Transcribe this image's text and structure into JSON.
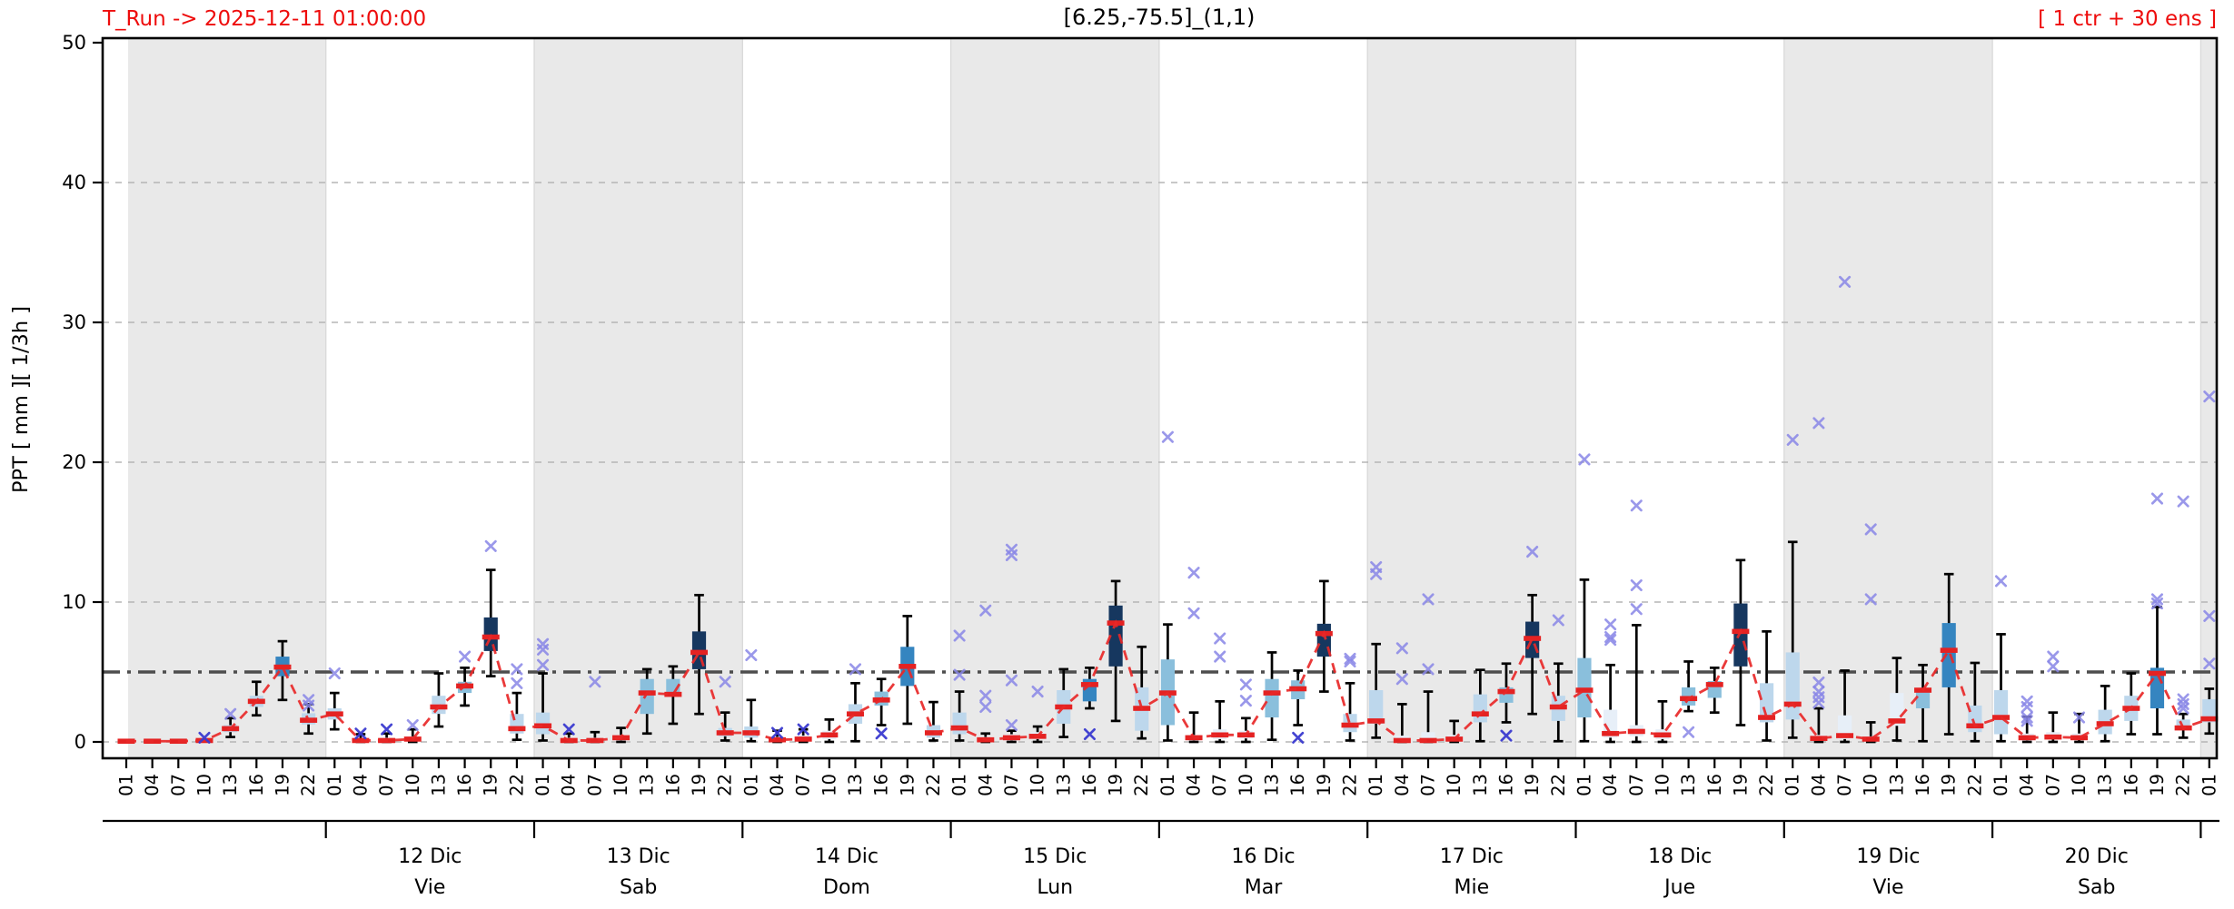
{
  "header": {
    "run_label": "T_Run -> 2025-12-11  01:00:00",
    "location_label": "[6.25,-75.5]_(1,1)",
    "ensemble_label": "[ 1 ctr + 30 ens ]"
  },
  "axes": {
    "y_label": "PPT [ mm ][ 1/3h ]",
    "y_ticks": [
      0,
      10,
      20,
      30,
      40,
      50
    ],
    "y_lim": [
      0,
      50
    ],
    "threshold_value": 5
  },
  "palette": {
    "title_red": "#ee0d0d",
    "median": "#e42222",
    "trend": "#e82828",
    "whisker": "#000000",
    "outlier": "#8886e6",
    "outlier_dark": "#3a3ad0",
    "band": "#e9e9e9",
    "band_edge": "#d9d9d9",
    "grid": "#b5b5b5",
    "threshold": "#4d4d4d",
    "box": {
      "verypale": "#e7eff8",
      "pale": "#bdd7ec",
      "midlight": "#8abfdc",
      "steel": "#3585c0",
      "navy": "#16375f"
    }
  },
  "chart_data": {
    "type": "boxplot",
    "title": "[6.25,-75.5]_(1,1)",
    "title_left": "T_Run -> 2025-12-11  01:00:00",
    "title_right": "[ 1 ctr + 30 ens ]",
    "xlabel": "",
    "ylabel": "PPT [ mm ][ 1/3h ]",
    "ylim": [
      0,
      50
    ],
    "grid": "horizontal dashed at 0,10,20,30,40",
    "legend": "none",
    "threshold_line": 5,
    "hours_per_day": [
      "01",
      "04",
      "07",
      "10",
      "13",
      "16",
      "19",
      "22"
    ],
    "days": [
      {
        "date": "",
        "weekday": "",
        "shaded": true
      },
      {
        "date": "12 Dic",
        "weekday": "Vie",
        "shaded": false
      },
      {
        "date": "13 Dic",
        "weekday": "Sab",
        "shaded": true
      },
      {
        "date": "14 Dic",
        "weekday": "Dom",
        "shaded": false
      },
      {
        "date": "15 Dic",
        "weekday": "Lun",
        "shaded": true
      },
      {
        "date": "16 Dic",
        "weekday": "Mar",
        "shaded": false
      },
      {
        "date": "17 Dic",
        "weekday": "Mie",
        "shaded": true
      },
      {
        "date": "18 Dic",
        "weekday": "Jue",
        "shaded": false
      },
      {
        "date": "19 Dic",
        "weekday": "Vie",
        "shaded": true
      },
      {
        "date": "20 Dic",
        "weekday": "Sab",
        "shaded": false
      },
      {
        "date": "",
        "weekday": "",
        "shaded": true
      }
    ],
    "slots": [
      {
        "h": "01",
        "m": 0.05
      },
      {
        "h": "04",
        "m": 0.05
      },
      {
        "h": "07",
        "m": 0.05
      },
      {
        "h": "10",
        "m": 0.1,
        "od": [
          0.3
        ]
      },
      {
        "h": "13",
        "m": 0.95,
        "b": [
          0.7,
          1.2
        ],
        "w": [
          0.35,
          1.7
        ],
        "c": "pale",
        "o": [
          2.0
        ]
      },
      {
        "h": "16",
        "m": 2.9,
        "b": [
          2.5,
          3.3
        ],
        "w": [
          1.9,
          4.3
        ],
        "c": "pale"
      },
      {
        "h": "19",
        "m": 5.35,
        "b": [
          4.7,
          6.1
        ],
        "w": [
          3.0,
          7.2
        ],
        "c": "steel"
      },
      {
        "h": "22",
        "m": 1.55,
        "b": [
          1.25,
          2.05
        ],
        "w": [
          0.6,
          2.7
        ],
        "c": "pale",
        "o": [
          2.6,
          3.0
        ]
      },
      {
        "h": "01",
        "m": 2.0,
        "b": [
          1.6,
          2.4
        ],
        "w": [
          0.9,
          3.5
        ],
        "c": "pale",
        "o": [
          4.9
        ]
      },
      {
        "h": "04",
        "m": 0.1,
        "b": [
          0,
          0.25
        ],
        "w": [
          0,
          0.55
        ],
        "c": "verypale",
        "od": [
          0.6
        ]
      },
      {
        "h": "07",
        "m": 0.1,
        "b": [
          0,
          0.3
        ],
        "w": [
          0,
          0.6
        ],
        "c": "verypale",
        "od": [
          0.9
        ]
      },
      {
        "h": "10",
        "m": 0.2,
        "b": [
          0.05,
          0.4
        ],
        "w": [
          0,
          0.9
        ],
        "c": "verypale",
        "o": [
          1.2
        ]
      },
      {
        "h": "13",
        "m": 2.5,
        "b": [
          2.0,
          3.3
        ],
        "w": [
          1.1,
          4.9
        ],
        "c": "pale"
      },
      {
        "h": "16",
        "m": 4.0,
        "b": [
          3.5,
          4.3
        ],
        "w": [
          2.6,
          5.3
        ],
        "c": "midlight",
        "o": [
          6.1
        ]
      },
      {
        "h": "19",
        "m": 7.5,
        "b": [
          6.5,
          8.9
        ],
        "w": [
          4.7,
          12.3
        ],
        "c": "navy",
        "o": [
          14.0
        ]
      },
      {
        "h": "22",
        "m": 0.95,
        "b": [
          0.6,
          2.0
        ],
        "w": [
          0.15,
          3.5
        ],
        "c": "pale",
        "o": [
          4.2,
          5.2
        ]
      },
      {
        "h": "01",
        "m": 1.15,
        "b": [
          0.55,
          2.1
        ],
        "w": [
          0.1,
          4.9
        ],
        "c": "pale",
        "o": [
          5.5,
          6.6,
          7.0
        ]
      },
      {
        "h": "04",
        "m": 0.1,
        "b": [
          0,
          0.3
        ],
        "w": [
          0,
          0.6
        ],
        "c": "verypale",
        "od": [
          0.9
        ]
      },
      {
        "h": "07",
        "m": 0.1,
        "b": [
          0,
          0.3
        ],
        "w": [
          0,
          0.7
        ],
        "c": "verypale",
        "o": [
          4.3
        ]
      },
      {
        "h": "10",
        "m": 0.3,
        "b": [
          0.1,
          0.5
        ],
        "w": [
          0,
          1.0
        ],
        "c": "verypale"
      },
      {
        "h": "13",
        "m": 3.5,
        "b": [
          2.0,
          4.5
        ],
        "w": [
          0.6,
          5.2
        ],
        "c": "midlight"
      },
      {
        "h": "16",
        "m": 3.4,
        "b": [
          3.3,
          4.5
        ],
        "w": [
          1.3,
          5.4
        ],
        "c": "midlight"
      },
      {
        "h": "19",
        "m": 6.4,
        "b": [
          5.2,
          7.9
        ],
        "w": [
          2.0,
          10.5
        ],
        "c": "navy"
      },
      {
        "h": "22",
        "m": 0.65,
        "b": [
          0.4,
          1.0
        ],
        "w": [
          0.1,
          2.1
        ],
        "c": "pale",
        "o": [
          4.3
        ]
      },
      {
        "h": "01",
        "m": 0.65,
        "b": [
          0.3,
          1.1
        ],
        "w": [
          0.05,
          3.0
        ],
        "c": "pale",
        "o": [
          6.2
        ]
      },
      {
        "h": "04",
        "m": 0.15,
        "b": [
          0,
          0.35
        ],
        "w": [
          0,
          0.8
        ],
        "c": "verypale",
        "od": [
          0.65
        ]
      },
      {
        "h": "07",
        "m": 0.2,
        "b": [
          0.05,
          0.45
        ],
        "w": [
          0,
          0.9
        ],
        "c": "verypale",
        "od": [
          0.9
        ]
      },
      {
        "h": "10",
        "m": 0.5,
        "b": [
          0.2,
          0.8
        ],
        "w": [
          0,
          1.6
        ],
        "c": "verypale"
      },
      {
        "h": "13",
        "m": 2.0,
        "b": [
          1.3,
          2.7
        ],
        "w": [
          0.05,
          4.2
        ],
        "c": "pale",
        "o": [
          5.2
        ]
      },
      {
        "h": "16",
        "m": 3.0,
        "b": [
          2.6,
          3.6
        ],
        "w": [
          1.2,
          4.5
        ],
        "c": "midlight",
        "od": [
          0.6
        ]
      },
      {
        "h": "19",
        "m": 5.4,
        "b": [
          4.0,
          6.8
        ],
        "w": [
          1.3,
          9.0
        ],
        "c": "steel"
      },
      {
        "h": "22",
        "m": 0.65,
        "b": [
          0.3,
          1.2
        ],
        "w": [
          0.1,
          2.85
        ],
        "c": "pale"
      },
      {
        "h": "01",
        "m": 1.0,
        "b": [
          0.55,
          2.1
        ],
        "w": [
          0.1,
          3.6
        ],
        "c": "pale",
        "o": [
          4.8,
          7.6
        ]
      },
      {
        "h": "04",
        "m": 0.15,
        "b": [
          0,
          0.35
        ],
        "w": [
          0,
          0.6
        ],
        "c": "verypale",
        "o": [
          2.5,
          3.3,
          9.4
        ]
      },
      {
        "h": "07",
        "m": 0.3,
        "b": [
          0.1,
          0.55
        ],
        "w": [
          0,
          0.8
        ],
        "c": "verypale",
        "o": [
          1.2,
          4.4,
          13.35,
          13.75
        ]
      },
      {
        "h": "10",
        "m": 0.4,
        "b": [
          0.2,
          0.7
        ],
        "w": [
          0,
          1.1
        ],
        "c": "verypale",
        "o": [
          3.6
        ]
      },
      {
        "h": "13",
        "m": 2.5,
        "b": [
          1.3,
          3.7
        ],
        "w": [
          0.35,
          5.2
        ],
        "c": "pale"
      },
      {
        "h": "16",
        "m": 4.1,
        "b": [
          2.9,
          4.5
        ],
        "w": [
          2.4,
          5.3
        ],
        "c": "steel",
        "od": [
          0.55
        ]
      },
      {
        "h": "19",
        "m": 8.5,
        "b": [
          5.4,
          9.75
        ],
        "w": [
          1.5,
          11.5
        ],
        "c": "navy"
      },
      {
        "h": "22",
        "m": 2.4,
        "b": [
          0.8,
          3.9
        ],
        "w": [
          0.25,
          6.8
        ],
        "c": "pale"
      },
      {
        "h": "01",
        "m": 3.5,
        "b": [
          1.2,
          5.9
        ],
        "w": [
          0.1,
          8.4
        ],
        "c": "midlight",
        "o": [
          21.8
        ]
      },
      {
        "h": "04",
        "m": 0.3,
        "b": [
          0.1,
          0.5
        ],
        "w": [
          0,
          2.1
        ],
        "c": "verypale",
        "o": [
          9.2,
          12.1
        ]
      },
      {
        "h": "07",
        "m": 0.5,
        "b": [
          0.2,
          0.9
        ],
        "w": [
          0,
          2.9
        ],
        "c": "verypale",
        "o": [
          6.1,
          7.4
        ]
      },
      {
        "h": "10",
        "m": 0.5,
        "b": [
          0.25,
          0.8
        ],
        "w": [
          0,
          1.7
        ],
        "c": "verypale",
        "o": [
          2.95,
          4.1
        ]
      },
      {
        "h": "13",
        "m": 3.5,
        "b": [
          1.75,
          4.5
        ],
        "w": [
          0.15,
          6.4
        ],
        "c": "midlight"
      },
      {
        "h": "16",
        "m": 3.8,
        "b": [
          3.05,
          4.4
        ],
        "w": [
          1.2,
          5.1
        ],
        "c": "midlight",
        "od": [
          0.3
        ]
      },
      {
        "h": "19",
        "m": 7.75,
        "b": [
          6.1,
          8.45
        ],
        "w": [
          3.6,
          11.5
        ],
        "c": "navy"
      },
      {
        "h": "22",
        "m": 1.2,
        "b": [
          0.7,
          2.0
        ],
        "w": [
          0.1,
          4.2
        ],
        "c": "pale",
        "o": [
          5.75,
          5.95
        ]
      },
      {
        "h": "01",
        "m": 1.5,
        "b": [
          1.3,
          3.7
        ],
        "w": [
          0.3,
          7.0
        ],
        "c": "pale",
        "o": [
          12.0,
          12.5
        ]
      },
      {
        "h": "04",
        "m": 0.1,
        "b": [
          0,
          0.45
        ],
        "w": [
          0,
          2.7
        ],
        "c": "verypale",
        "o": [
          4.5,
          6.7
        ]
      },
      {
        "h": "07",
        "m": 0.1,
        "b": [
          0,
          0.7
        ],
        "w": [
          0,
          3.6
        ],
        "c": "verypale",
        "o": [
          5.2,
          10.2
        ]
      },
      {
        "h": "10",
        "m": 0.2,
        "b": [
          0.05,
          0.5
        ],
        "w": [
          0,
          1.5
        ],
        "c": "verypale"
      },
      {
        "h": "13",
        "m": 2.0,
        "b": [
          1.4,
          3.4
        ],
        "w": [
          0.05,
          5.15
        ],
        "c": "pale"
      },
      {
        "h": "16",
        "m": 3.6,
        "b": [
          2.8,
          3.9
        ],
        "w": [
          1.4,
          5.6
        ],
        "c": "midlight",
        "od": [
          0.45
        ]
      },
      {
        "h": "19",
        "m": 7.4,
        "b": [
          6.0,
          8.6
        ],
        "w": [
          2.0,
          10.5
        ],
        "c": "navy",
        "o": [
          13.6
        ]
      },
      {
        "h": "22",
        "m": 2.5,
        "b": [
          1.5,
          3.3
        ],
        "w": [
          0.05,
          5.6
        ],
        "c": "pale",
        "o": [
          8.7
        ]
      },
      {
        "h": "01",
        "m": 3.7,
        "b": [
          1.75,
          6.0
        ],
        "w": [
          0.05,
          11.6
        ],
        "c": "midlight",
        "o": [
          20.2
        ]
      },
      {
        "h": "04",
        "m": 0.6,
        "b": [
          0.3,
          2.3
        ],
        "w": [
          0,
          5.5
        ],
        "c": "verypale",
        "o": [
          7.3,
          7.5,
          8.4
        ]
      },
      {
        "h": "07",
        "m": 0.75,
        "b": [
          0.4,
          1.2
        ],
        "w": [
          0,
          8.35
        ],
        "c": "verypale",
        "o": [
          9.5,
          11.2,
          16.9
        ]
      },
      {
        "h": "10",
        "m": 0.5,
        "b": [
          0.2,
          0.9
        ],
        "w": [
          0,
          2.9
        ],
        "c": "verypale"
      },
      {
        "h": "13",
        "m": 3.1,
        "b": [
          2.6,
          3.9
        ],
        "w": [
          2.2,
          5.75
        ],
        "c": "midlight",
        "o": [
          0.7
        ]
      },
      {
        "h": "16",
        "m": 4.1,
        "b": [
          3.15,
          4.35
        ],
        "w": [
          2.1,
          5.3
        ],
        "c": "midlight"
      },
      {
        "h": "19",
        "m": 7.9,
        "b": [
          5.4,
          9.9
        ],
        "w": [
          1.2,
          13.0
        ],
        "c": "navy"
      },
      {
        "h": "22",
        "m": 1.75,
        "b": [
          1.4,
          4.2
        ],
        "w": [
          0.1,
          7.9
        ],
        "c": "pale"
      },
      {
        "h": "01",
        "m": 2.7,
        "b": [
          1.6,
          6.4
        ],
        "w": [
          0.3,
          14.3
        ],
        "c": "pale",
        "o": [
          21.6
        ]
      },
      {
        "h": "04",
        "m": 0.25,
        "b": [
          0.1,
          0.5
        ],
        "w": [
          0,
          2.4
        ],
        "c": "verypale",
        "o": [
          2.8,
          3.2,
          3.6,
          4.25,
          22.8
        ]
      },
      {
        "h": "07",
        "m": 0.45,
        "b": [
          0.2,
          1.9
        ],
        "w": [
          0,
          5.1
        ],
        "c": "verypale",
        "o": [
          32.9
        ]
      },
      {
        "h": "10",
        "m": 0.2,
        "b": [
          0.1,
          0.4
        ],
        "w": [
          0,
          1.4
        ],
        "c": "verypale",
        "o": [
          10.2,
          15.2
        ]
      },
      {
        "h": "13",
        "m": 1.5,
        "b": [
          1.15,
          3.5
        ],
        "w": [
          0.1,
          6.0
        ],
        "c": "verypale"
      },
      {
        "h": "16",
        "m": 3.7,
        "b": [
          2.4,
          3.8
        ],
        "w": [
          0.05,
          5.5
        ],
        "c": "midlight"
      },
      {
        "h": "19",
        "m": 6.55,
        "b": [
          3.9,
          8.5
        ],
        "w": [
          0.55,
          12.0
        ],
        "c": "steel"
      },
      {
        "h": "22",
        "m": 1.15,
        "b": [
          0.7,
          2.6
        ],
        "w": [
          0.05,
          5.65
        ],
        "c": "pale"
      },
      {
        "h": "01",
        "m": 1.75,
        "b": [
          0.55,
          3.7
        ],
        "w": [
          0.05,
          7.7
        ],
        "c": "pale",
        "o": [
          11.5
        ]
      },
      {
        "h": "04",
        "m": 0.3,
        "b": [
          0.1,
          0.6
        ],
        "w": [
          0,
          1.8
        ],
        "c": "verypale",
        "o": [
          1.5,
          1.75,
          2.5,
          2.9
        ]
      },
      {
        "h": "07",
        "m": 0.35,
        "b": [
          0.2,
          0.7
        ],
        "w": [
          0,
          2.1
        ],
        "c": "verypale",
        "o": [
          5.4,
          6.1
        ]
      },
      {
        "h": "10",
        "m": 0.3,
        "b": [
          0.15,
          0.6
        ],
        "w": [
          0,
          2.0
        ],
        "c": "verypale",
        "o": [
          1.75
        ]
      },
      {
        "h": "13",
        "m": 1.3,
        "b": [
          0.55,
          2.3
        ],
        "w": [
          0.05,
          4.0
        ],
        "c": "pale"
      },
      {
        "h": "16",
        "m": 2.4,
        "b": [
          1.5,
          3.3
        ],
        "w": [
          0.55,
          4.9
        ],
        "c": "pale"
      },
      {
        "h": "19",
        "m": 4.9,
        "b": [
          2.4,
          5.3
        ],
        "w": [
          0.55,
          9.65
        ],
        "c": "steel",
        "o": [
          9.9,
          10.2,
          17.4
        ]
      },
      {
        "h": "22",
        "m": 1.0,
        "b": [
          0.85,
          1.6
        ],
        "w": [
          0.3,
          2.0
        ],
        "c": "pale",
        "o": [
          2.4,
          2.7,
          3.05,
          17.2
        ]
      },
      {
        "h": "01",
        "m": 1.65,
        "b": [
          1.4,
          3.05
        ],
        "w": [
          0.6,
          3.8
        ],
        "c": "pale",
        "o": [
          5.6,
          9.0,
          24.7
        ]
      }
    ]
  }
}
